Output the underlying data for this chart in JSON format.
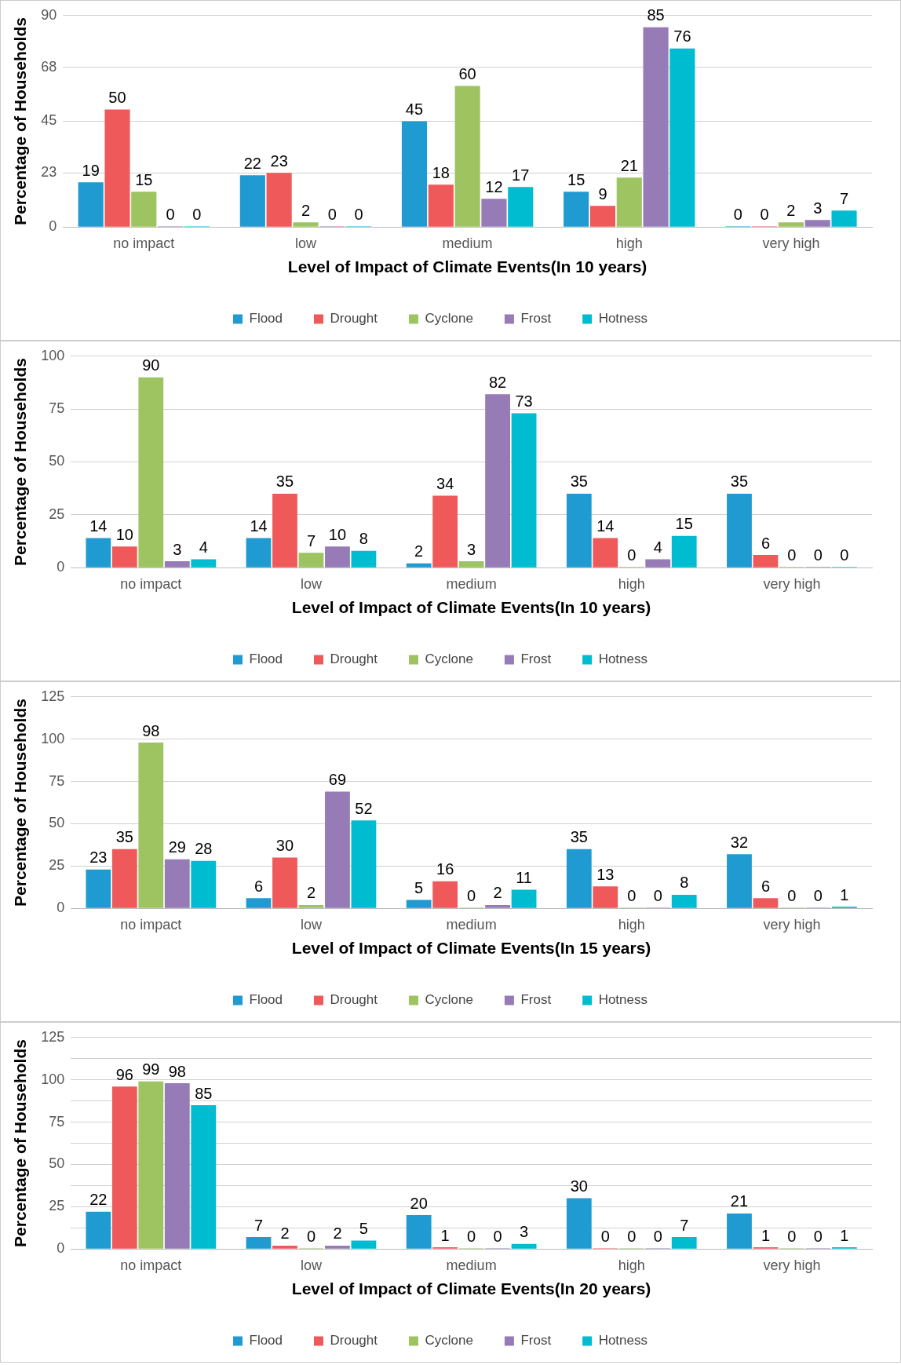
{
  "chart_data": [
    {
      "type": "bar",
      "xlabel": "Level of Impact of Climate Events(In 10 years)",
      "ylabel": "Percentage of Households",
      "categories": [
        "no impact",
        "low",
        "medium",
        "high",
        "very high"
      ],
      "ylim": [
        0,
        90
      ],
      "yticks": [
        0,
        23,
        45,
        68,
        90
      ],
      "grid": "y",
      "legend": "bottom",
      "data_labels": true,
      "series": [
        {
          "name": "Flood",
          "color": "#1f9bd1",
          "values": [
            19,
            22,
            45,
            15,
            0
          ]
        },
        {
          "name": "Drought",
          "color": "#f0595a",
          "values": [
            50,
            23,
            18,
            9,
            0
          ]
        },
        {
          "name": "Cyclone",
          "color": "#9dc461",
          "values": [
            15,
            2,
            60,
            21,
            2
          ]
        },
        {
          "name": "Frost",
          "color": "#967bb6",
          "values": [
            0,
            0,
            12,
            85,
            3
          ]
        },
        {
          "name": "Hotness",
          "color": "#00bcd0",
          "values": [
            0,
            0,
            17,
            76,
            7
          ]
        }
      ]
    },
    {
      "type": "bar",
      "xlabel": "Level of Impact of Climate Events(In 10 years)",
      "ylabel": "Percentage of Households",
      "categories": [
        "no impact",
        "low",
        "medium",
        "high",
        "very high"
      ],
      "ylim": [
        0,
        100
      ],
      "yticks": [
        0,
        25,
        50,
        75,
        100
      ],
      "grid": "y",
      "legend": "bottom",
      "data_labels": true,
      "series": [
        {
          "name": "Flood",
          "color": "#1f9bd1",
          "values": [
            14,
            14,
            2,
            35,
            35
          ]
        },
        {
          "name": "Drought",
          "color": "#f0595a",
          "values": [
            10,
            35,
            34,
            14,
            6
          ]
        },
        {
          "name": "Cyclone",
          "color": "#9dc461",
          "values": [
            90,
            7,
            3,
            0,
            0
          ]
        },
        {
          "name": "Frost",
          "color": "#967bb6",
          "values": [
            3,
            10,
            82,
            4,
            0
          ]
        },
        {
          "name": "Hotness",
          "color": "#00bcd0",
          "values": [
            4,
            8,
            73,
            15,
            0
          ]
        }
      ]
    },
    {
      "type": "bar",
      "xlabel": "Level of Impact of Climate Events(In 15 years)",
      "ylabel": "Percentage of Households",
      "categories": [
        "no impact",
        "low",
        "medium",
        "high",
        "very high"
      ],
      "ylim": [
        0,
        125
      ],
      "yticks": [
        0,
        25,
        50,
        75,
        100,
        125
      ],
      "grid": "y",
      "legend": "bottom",
      "data_labels": true,
      "series": [
        {
          "name": "Flood",
          "color": "#1f9bd1",
          "values": [
            23,
            6,
            5,
            35,
            32
          ]
        },
        {
          "name": "Drought",
          "color": "#f0595a",
          "values": [
            35,
            30,
            16,
            13,
            6
          ]
        },
        {
          "name": "Cyclone",
          "color": "#9dc461",
          "values": [
            98,
            2,
            0,
            0,
            0
          ]
        },
        {
          "name": "Frost",
          "color": "#967bb6",
          "values": [
            29,
            69,
            2,
            0,
            0
          ]
        },
        {
          "name": "Hotness",
          "color": "#00bcd0",
          "values": [
            28,
            52,
            11,
            8,
            1
          ]
        }
      ]
    },
    {
      "type": "bar",
      "xlabel": "Level of Impact of Climate Events(In 20 years)",
      "ylabel": "Percentage of Households",
      "categories": [
        "no impact",
        "low",
        "medium",
        "high",
        "very high"
      ],
      "ylim": [
        0,
        125
      ],
      "yticks": [
        0,
        {
          "value": 12.5,
          "label": null
        },
        25,
        {
          "value": 37.5,
          "label": null
        },
        50,
        {
          "value": 62.5,
          "label": null
        },
        75,
        {
          "value": 87.5,
          "label": null
        },
        100,
        {
          "value": 112.5,
          "label": null
        },
        125
      ],
      "grid": "y",
      "legend": "bottom",
      "data_labels": true,
      "series": [
        {
          "name": "Flood",
          "color": "#1f9bd1",
          "values": [
            22,
            7,
            20,
            30,
            21
          ]
        },
        {
          "name": "Drought",
          "color": "#f0595a",
          "values": [
            96,
            2,
            1,
            0,
            1
          ]
        },
        {
          "name": "Cyclone",
          "color": "#9dc461",
          "values": [
            99,
            0,
            0,
            0,
            0
          ]
        },
        {
          "name": "Frost",
          "color": "#967bb6",
          "values": [
            98,
            2,
            0,
            0,
            0
          ]
        },
        {
          "name": "Hotness",
          "color": "#00bcd0",
          "values": [
            85,
            5,
            3,
            7,
            1
          ]
        }
      ]
    }
  ]
}
